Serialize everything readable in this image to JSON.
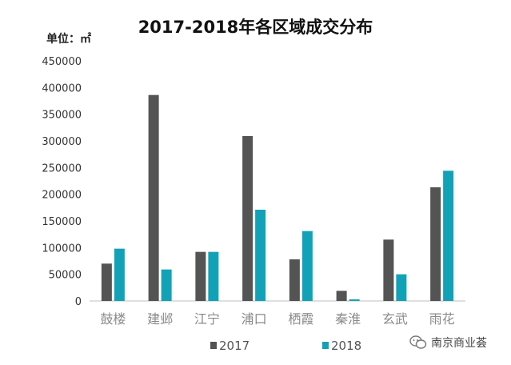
{
  "title": "2017-2018年各区域成交分布",
  "unit_label": "单位：㎡",
  "watermark": "南京商业荟",
  "chart_data": {
    "type": "bar",
    "title": "2017-2018年各区域成交分布",
    "unit": "单位：㎡",
    "categories": [
      "鼓楼",
      "建邺",
      "江宁",
      "浦口",
      "栖霞",
      "秦淮",
      "玄武",
      "雨花"
    ],
    "series": [
      {
        "name": "2017",
        "color": "#545454",
        "values": [
          70000,
          386000,
          92000,
          309000,
          78000,
          19000,
          115000,
          213000
        ]
      },
      {
        "name": "2018",
        "color": "#12a2b8",
        "values": [
          98000,
          59000,
          92000,
          171000,
          131000,
          3000,
          50000,
          244000
        ]
      }
    ],
    "ylim": [
      0,
      450000
    ],
    "yticks": [
      0,
      50000,
      100000,
      150000,
      200000,
      250000,
      300000,
      350000,
      400000,
      450000
    ],
    "grid": false,
    "legend_position": "bottom"
  }
}
